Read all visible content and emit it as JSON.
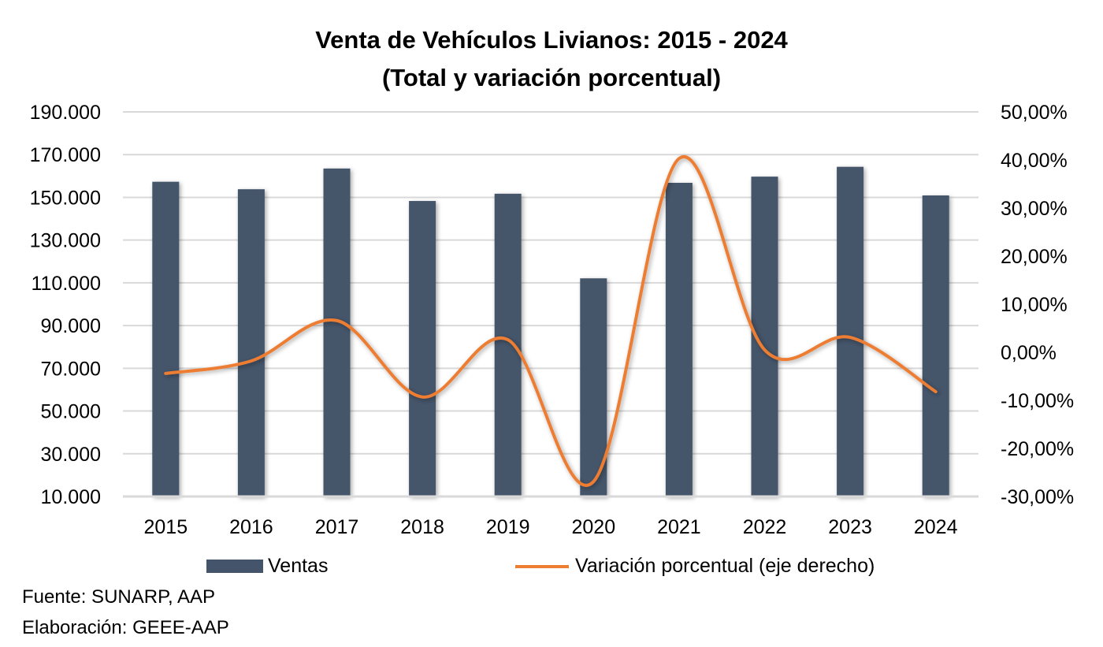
{
  "chart_data": {
    "type": "bar",
    "title": "Venta de Vehículos Livianos: 2015 - 2024",
    "subtitle": "(Total y variación porcentual)",
    "categories": [
      "2015",
      "2016",
      "2017",
      "2018",
      "2019",
      "2020",
      "2021",
      "2022",
      "2023",
      "2024"
    ],
    "series": [
      {
        "name": "Ventas",
        "type": "bar",
        "axis": "left",
        "color": "#44546a",
        "values": [
          157300,
          153800,
          163500,
          148300,
          151700,
          112100,
          156800,
          159700,
          164300,
          150900
        ]
      },
      {
        "name": "Variación porcentual (eje derecho)",
        "type": "line",
        "smooth": true,
        "axis": "right",
        "color": "#ed7d31",
        "values": [
          -4.4,
          -1.8,
          6.6,
          -9.3,
          2.6,
          -26.9,
          40.3,
          0.5,
          3.1,
          -8.2
        ]
      }
    ],
    "y_left": {
      "label": "",
      "range": [
        10000,
        190000
      ],
      "ticks": [
        10000,
        30000,
        50000,
        70000,
        90000,
        110000,
        130000,
        150000,
        170000,
        190000
      ],
      "tick_labels": [
        "10.000",
        "30.000",
        "50.000",
        "70.000",
        "90.000",
        "110.000",
        "130.000",
        "150.000",
        "170.000",
        "190.000"
      ]
    },
    "y_right": {
      "label": "",
      "range": [
        -30,
        50
      ],
      "ticks": [
        -30,
        -20,
        -10,
        0,
        10,
        20,
        30,
        40,
        50
      ],
      "tick_labels": [
        "-30,00%",
        "-20,00%",
        "-10,00%",
        "0,00%",
        "10,00%",
        "20,00%",
        "30,00%",
        "40,00%",
        "50,00%"
      ]
    },
    "xlabel": "",
    "grid": true,
    "legend_position": "bottom"
  },
  "legend": {
    "bars_label": "Ventas",
    "line_label": "Variación porcentual (eje derecho)"
  },
  "footer": {
    "source": "Fuente: SUNARP, AAP",
    "elaboration": "Elaboración: GEEE-AAP"
  }
}
